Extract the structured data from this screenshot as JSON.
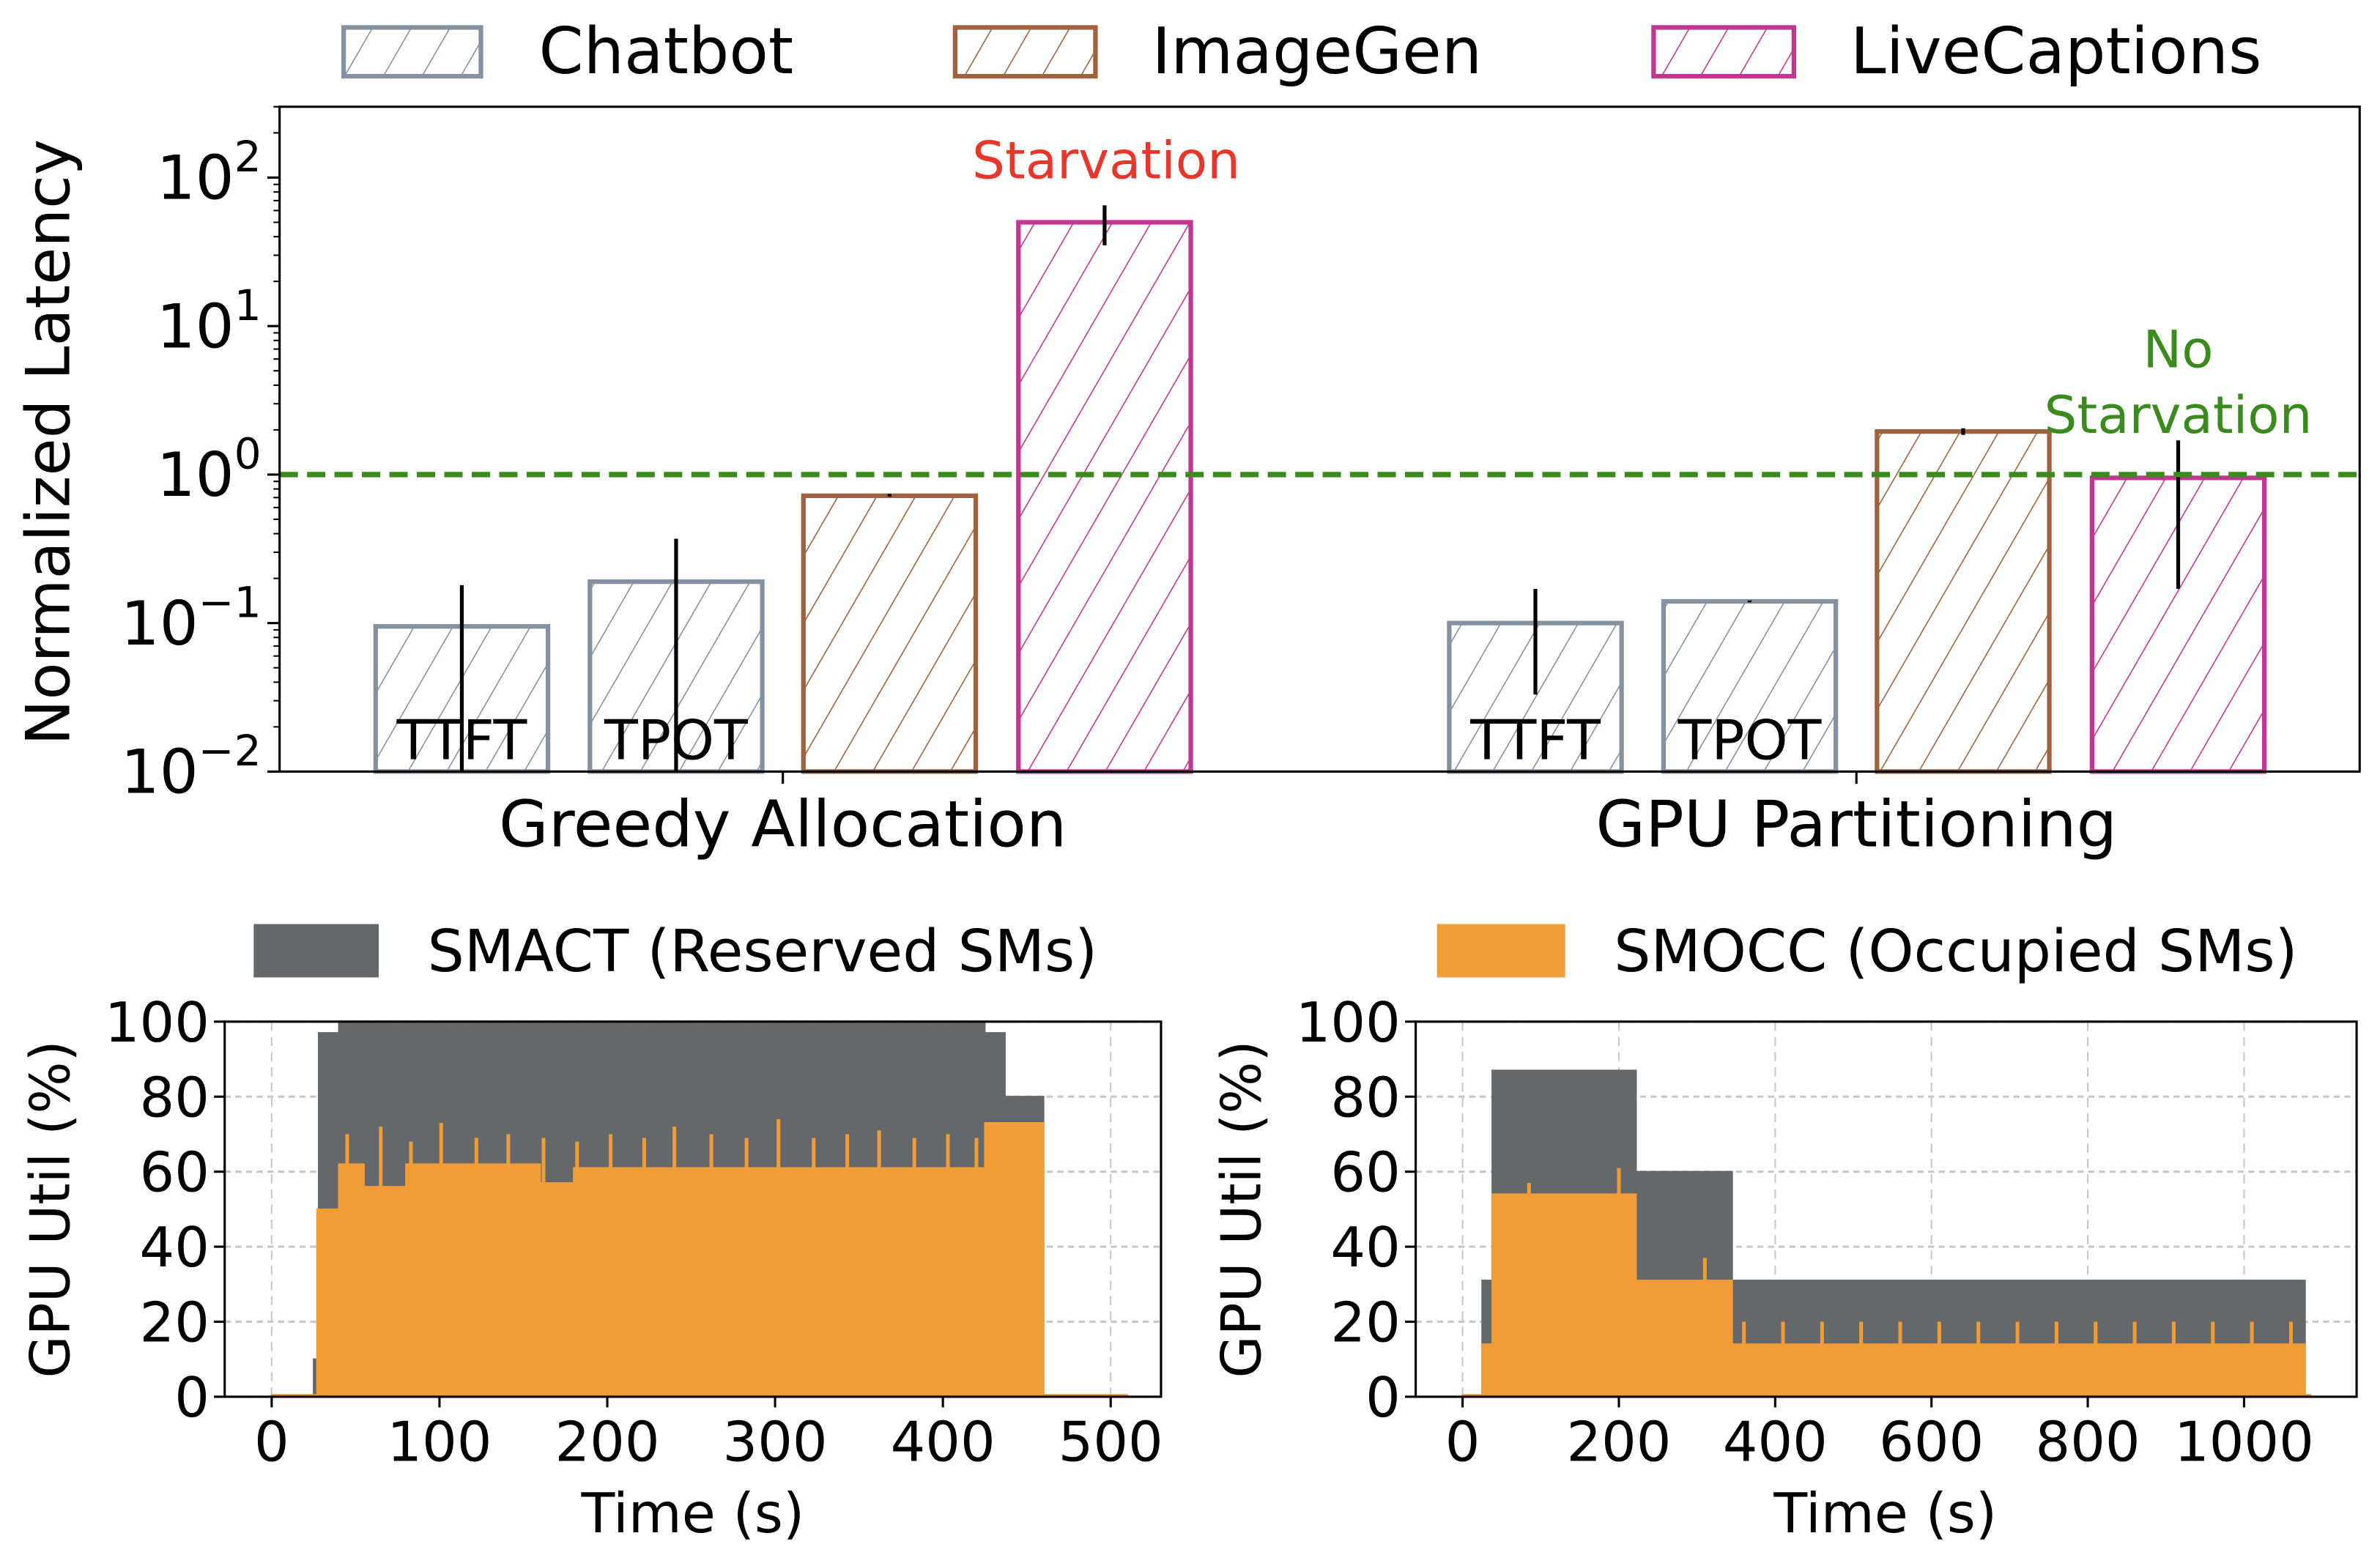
{
  "colors": {
    "Chatbot": "#8391a0",
    "ImageGen": "#a0613e",
    "LiveCaptions": "#c23592",
    "reference_line": "#3b8a1e",
    "starvation": "#e8362a",
    "no_starvation": "#3b8a1e",
    "SMACT": "#65686b",
    "SMOCC": "#f09d38"
  },
  "chart_data": [
    {
      "type": "bar",
      "ylabel": "Normalized Latency",
      "yscale": "log",
      "ylim": [
        0.01,
        300
      ],
      "yticks": [
        {
          "base": "10",
          "exp": "−2"
        },
        {
          "base": "10",
          "exp": "−1"
        },
        {
          "base": "10",
          "exp": "0"
        },
        {
          "base": "10",
          "exp": "1"
        },
        {
          "base": "10",
          "exp": "2"
        }
      ],
      "hatch": "diagonal",
      "legend": {
        "placement": "top",
        "entries": [
          "Chatbot",
          "ImageGen",
          "LiveCaptions"
        ]
      },
      "reference_line": {
        "y": 1,
        "style": "dashed"
      },
      "categories": [
        "Greedy Allocation",
        "GPU Partitioning"
      ],
      "groups": [
        {
          "label": "Greedy Allocation",
          "bars": [
            {
              "series": "Chatbot",
              "label": "TTFT",
              "value": 0.095,
              "err": [
                0.01,
                0.18
              ]
            },
            {
              "series": "Chatbot",
              "label": "TPOT",
              "value": 0.19,
              "err": [
                0.01,
                0.37
              ]
            },
            {
              "series": "ImageGen",
              "label": "",
              "value": 0.72,
              "err": [
                0.71,
                0.74
              ]
            },
            {
              "series": "LiveCaptions",
              "label": "",
              "value": 50,
              "err": [
                35,
                65
              ]
            }
          ]
        },
        {
          "label": "GPU Partitioning",
          "bars": [
            {
              "series": "Chatbot",
              "label": "TTFT",
              "value": 0.1,
              "err": [
                0.033,
                0.17
              ]
            },
            {
              "series": "Chatbot",
              "label": "TPOT",
              "value": 0.14,
              "err": [
                0.138,
                0.142
              ]
            },
            {
              "series": "ImageGen",
              "label": "",
              "value": 1.95,
              "err": [
                1.85,
                2.05
              ]
            },
            {
              "series": "LiveCaptions",
              "label": "",
              "value": 0.95,
              "err": [
                0.17,
                1.7
              ]
            }
          ]
        }
      ],
      "annotations": [
        {
          "text": "Starvation",
          "color_key": "starvation"
        },
        {
          "text": "No",
          "color_key": "no_starvation"
        },
        {
          "text": "Starvation",
          "color_key": "no_starvation"
        }
      ]
    },
    {
      "type": "area",
      "xlabel": "Time (s)",
      "ylabel": "GPU Util (%)",
      "xlim": [
        -28,
        530
      ],
      "ylim": [
        0,
        100
      ],
      "xticks": [
        0,
        100,
        200,
        300,
        400,
        500
      ],
      "yticks": [
        0,
        20,
        40,
        60,
        80,
        100
      ],
      "grid": true,
      "legend": {
        "placement": "top",
        "entries": [
          "SMACT (Reserved SMs)"
        ]
      },
      "series": [
        {
          "name": "SMACT (Reserved SMs)",
          "steps": [
            [
              0,
              0.5
            ],
            [
              25,
              10
            ],
            [
              28,
              97
            ],
            [
              40,
              100
            ],
            [
              425,
              97
            ],
            [
              437,
              80
            ],
            [
              460,
              0.5
            ],
            [
              510,
              0.5
            ]
          ]
        },
        {
          "name": "SMOCC (Occupied SMs)",
          "steps": [
            [
              0,
              0.5
            ],
            [
              27,
              50
            ],
            [
              40,
              62
            ],
            [
              55,
              56
            ],
            [
              80,
              62
            ],
            [
              160,
              57
            ],
            [
              180,
              61
            ],
            [
              425,
              73
            ],
            [
              460,
              0.5
            ],
            [
              510,
              0.5
            ]
          ],
          "spikes": [
            [
              45,
              70
            ],
            [
              65,
              72
            ],
            [
              83,
              68
            ],
            [
              101,
              73
            ],
            [
              122,
              69
            ],
            [
              141,
              70
            ],
            [
              162,
              69
            ],
            [
              182,
              68
            ],
            [
              202,
              70
            ],
            [
              222,
              69
            ],
            [
              240,
              72
            ],
            [
              262,
              70
            ],
            [
              283,
              69
            ],
            [
              302,
              74
            ],
            [
              323,
              69
            ],
            [
              343,
              70
            ],
            [
              362,
              71
            ],
            [
              383,
              69
            ],
            [
              403,
              70
            ],
            [
              420,
              69
            ]
          ]
        }
      ]
    },
    {
      "type": "area",
      "xlabel": "Time (s)",
      "ylabel": "GPU Util (%)",
      "xlim": [
        -60,
        1144
      ],
      "ylim": [
        0,
        100
      ],
      "xticks": [
        0,
        200,
        400,
        600,
        800,
        1000
      ],
      "yticks": [
        0,
        20,
        40,
        60,
        80,
        100
      ],
      "grid": true,
      "legend": {
        "placement": "top",
        "entries": [
          "SMOCC (Occupied SMs)"
        ]
      },
      "series": [
        {
          "name": "SMACT (Reserved SMs)",
          "steps": [
            [
              0,
              0.5
            ],
            [
              25,
              31
            ],
            [
              38,
              87
            ],
            [
              222,
              60
            ],
            [
              345,
              31
            ],
            [
              1078,
              0.5
            ],
            [
              1085,
              0.5
            ]
          ]
        },
        {
          "name": "SMOCC (Occupied SMs)",
          "steps": [
            [
              0,
              0.5
            ],
            [
              25,
              14
            ],
            [
              38,
              54
            ],
            [
              222,
              31
            ],
            [
              345,
              14
            ],
            [
              1078,
              0.5
            ],
            [
              1085,
              0.5
            ]
          ],
          "spikes": [
            [
              85,
              57
            ],
            [
              200,
              61
            ],
            [
              310,
              37
            ],
            [
              360,
              20
            ],
            [
              410,
              20
            ],
            [
              460,
              20
            ],
            [
              510,
              20
            ],
            [
              560,
              20
            ],
            [
              610,
              20
            ],
            [
              660,
              20
            ],
            [
              710,
              20
            ],
            [
              760,
              20
            ],
            [
              810,
              20
            ],
            [
              860,
              20
            ],
            [
              910,
              20
            ],
            [
              960,
              20
            ],
            [
              1010,
              20
            ],
            [
              1060,
              20
            ]
          ]
        }
      ]
    }
  ]
}
